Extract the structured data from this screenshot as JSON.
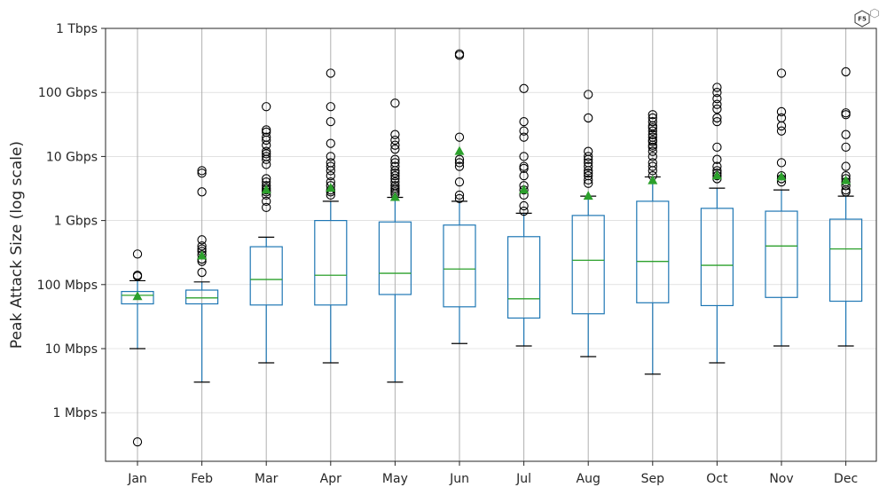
{
  "chart_data": {
    "type": "box",
    "title": "",
    "xlabel": "",
    "ylabel": "Peak Attack Size (log scale)",
    "yscale": "log",
    "ylim_mbps": [
      0.2,
      1000000
    ],
    "y_ticks": [
      {
        "value": 1,
        "label": "1 Mbps"
      },
      {
        "value": 10,
        "label": "10 Mbps"
      },
      {
        "value": 100,
        "label": "100 Mbps"
      },
      {
        "value": 1000,
        "label": "1 Gbps"
      },
      {
        "value": 10000,
        "label": "10 Gbps"
      },
      {
        "value": 100000,
        "label": "100 Gbps"
      },
      {
        "value": 1000000,
        "label": "1 Tbps"
      }
    ],
    "grid": true,
    "units": "Mbps",
    "categories": [
      "Jan",
      "Feb",
      "Mar",
      "Apr",
      "May",
      "Jun",
      "Jul",
      "Aug",
      "Sep",
      "Oct",
      "Nov",
      "Dec"
    ],
    "boxes": [
      {
        "month": "Jan",
        "whisker_low": 10,
        "q1": 50,
        "median": 68,
        "q3": 78,
        "whisker_high": 115,
        "mean": 65,
        "outliers": [
          0.35,
          140,
          135,
          300
        ]
      },
      {
        "month": "Feb",
        "whisker_low": 3,
        "q1": 50,
        "median": 62,
        "q3": 82,
        "whisker_high": 110,
        "mean": 280,
        "outliers": [
          155,
          230,
          250,
          290,
          330,
          360,
          400,
          500,
          2800,
          5500,
          6000
        ]
      },
      {
        "month": "Mar",
        "whisker_low": 6,
        "q1": 48,
        "median": 120,
        "q3": 390,
        "whisker_high": 550,
        "mean": 3000,
        "outliers": [
          1600,
          2000,
          2500,
          2800,
          3000,
          3200,
          3500,
          4000,
          4500,
          7500,
          9000,
          10000,
          11000,
          12000,
          15000,
          18000,
          20000,
          24000,
          26000,
          60000
        ]
      },
      {
        "month": "Apr",
        "whisker_low": 6,
        "q1": 48,
        "median": 140,
        "q3": 1000,
        "whisker_high": 2000,
        "mean": 3200,
        "outliers": [
          2500,
          2800,
          3000,
          3500,
          4000,
          5000,
          6000,
          7000,
          8000,
          10000,
          16000,
          35000,
          60000,
          200000
        ]
      },
      {
        "month": "May",
        "whisker_low": 3,
        "q1": 70,
        "median": 150,
        "q3": 950,
        "whisker_high": 2300,
        "mean": 2300,
        "outliers": [
          2600,
          2800,
          3000,
          3200,
          3500,
          4000,
          4500,
          5000,
          5500,
          6000,
          7000,
          8000,
          9000,
          13000,
          15000,
          18000,
          22000,
          68000
        ]
      },
      {
        "month": "Jun",
        "whisker_low": 12,
        "q1": 45,
        "median": 175,
        "q3": 850,
        "whisker_high": 2000,
        "mean": 12000,
        "outliers": [
          2200,
          2500,
          4000,
          7000,
          8000,
          9000,
          20000,
          380000,
          400000
        ]
      },
      {
        "month": "Jul",
        "whisker_low": 11,
        "q1": 30,
        "median": 60,
        "q3": 560,
        "whisker_high": 1300,
        "mean": 3000,
        "outliers": [
          1400,
          1700,
          2500,
          3000,
          3500,
          5000,
          6500,
          7000,
          10000,
          20000,
          25000,
          35000,
          115000
        ]
      },
      {
        "month": "Aug",
        "whisker_low": 7.5,
        "q1": 35,
        "median": 240,
        "q3": 1200,
        "whisker_high": 2400,
        "mean": 2400,
        "outliers": [
          3800,
          4300,
          5000,
          5500,
          6000,
          7000,
          8000,
          9000,
          10000,
          12000,
          40000,
          93000
        ]
      },
      {
        "month": "Sep",
        "whisker_low": 4,
        "q1": 52,
        "median": 230,
        "q3": 2000,
        "whisker_high": 4800,
        "mean": 4200,
        "outliers": [
          5000,
          6000,
          7000,
          8000,
          10000,
          12000,
          14000,
          15000,
          17000,
          18000,
          20000,
          22000,
          25000,
          28000,
          30000,
          35000,
          40000,
          45000
        ]
      },
      {
        "month": "Oct",
        "whisker_low": 6,
        "q1": 47,
        "median": 200,
        "q3": 1550,
        "whisker_high": 3200,
        "mean": 5000,
        "outliers": [
          4500,
          5000,
          5500,
          6000,
          7000,
          9000,
          14000,
          35000,
          40000,
          55000,
          65000,
          80000,
          100000,
          120000
        ]
      },
      {
        "month": "Nov",
        "whisker_low": 11,
        "q1": 63,
        "median": 400,
        "q3": 1400,
        "whisker_high": 3000,
        "mean": 4800,
        "outliers": [
          4000,
          4500,
          5000,
          8000,
          25000,
          30000,
          40000,
          50000,
          200000
        ]
      },
      {
        "month": "Dec",
        "whisker_low": 11,
        "q1": 55,
        "median": 360,
        "q3": 1050,
        "whisker_high": 2400,
        "mean": 4200,
        "outliers": [
          2800,
          3000,
          3500,
          4000,
          4500,
          5000,
          7000,
          14000,
          22000,
          45000,
          48000,
          210000
        ]
      }
    ],
    "colors": {
      "box": "#1f77b4",
      "median": "#2ca02c",
      "mean": "#2ca02c",
      "outlier": "#000000",
      "whisker_cap": "#000000",
      "grid": "#b0b0b0"
    }
  },
  "logo": {
    "text": "F5"
  }
}
